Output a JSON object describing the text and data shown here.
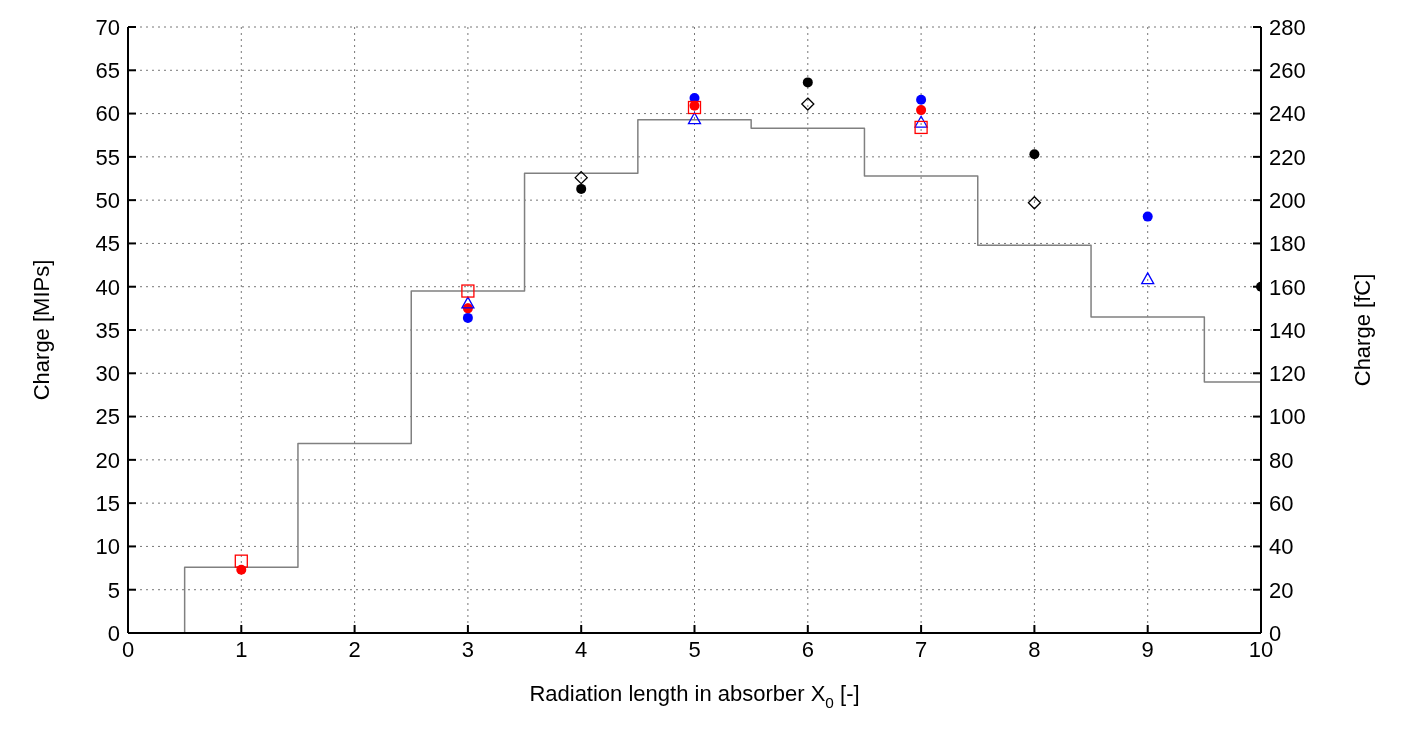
{
  "chart_data": {
    "type": "scatter",
    "xlabel": "Radiation length in absorber X$_{0}$ [-]",
    "ylabel": "Charge [MIPs]",
    "y2label": "Charge [fC]",
    "xlim": [
      0,
      10
    ],
    "xticks": [
      0,
      1,
      2,
      3,
      4,
      5,
      6,
      7,
      8,
      9,
      10
    ],
    "ylim": [
      0,
      70
    ],
    "yticks": [
      0,
      5,
      10,
      15,
      20,
      25,
      30,
      35,
      40,
      45,
      50,
      55,
      60,
      65,
      70
    ],
    "y2lim": [
      0,
      280
    ],
    "y2ticks": [
      0,
      20,
      40,
      60,
      80,
      100,
      120,
      140,
      160,
      180,
      200,
      220,
      240,
      260,
      280
    ],
    "grid": true,
    "series": [
      {
        "type": "step",
        "color": "#808080",
        "x": [
          0.5,
          0.5,
          1.5,
          2.5,
          3.5,
          4.5,
          5.5,
          6.5,
          7.5,
          8.5,
          9.5,
          10
        ],
        "values": [
          0,
          7.6,
          21.9,
          39.5,
          53.1,
          59.3,
          58.3,
          52.8,
          44.8,
          36.5,
          29.0,
          29.0
        ]
      },
      {
        "color": "#000000",
        "marker": "circle",
        "x": [
          4,
          6,
          8,
          10
        ],
        "values": [
          51.3,
          63.6,
          55.3,
          40.0
        ]
      },
      {
        "color": "#0000ff",
        "marker": "circle",
        "x": [
          3,
          5,
          7,
          9
        ],
        "values": [
          36.4,
          61.8,
          61.6,
          48.1
        ]
      },
      {
        "color": "#ff0000",
        "marker": "circle",
        "x": [
          1,
          3,
          5,
          7
        ],
        "values": [
          7.3,
          37.5,
          60.9,
          60.4
        ]
      },
      {
        "color": "#000000",
        "marker": "diamond",
        "x": [
          4,
          6,
          8
        ],
        "values": [
          52.6,
          61.1,
          49.7
        ]
      },
      {
        "color": "#0000ff",
        "marker": "triangle",
        "x": [
          3,
          5,
          7,
          9
        ],
        "values": [
          38.1,
          59.4,
          59.0,
          40.9
        ]
      },
      {
        "color": "#ff0000",
        "marker": "square",
        "x": [
          1,
          3,
          5,
          7
        ],
        "values": [
          8.3,
          39.5,
          60.7,
          58.4
        ]
      }
    ]
  }
}
